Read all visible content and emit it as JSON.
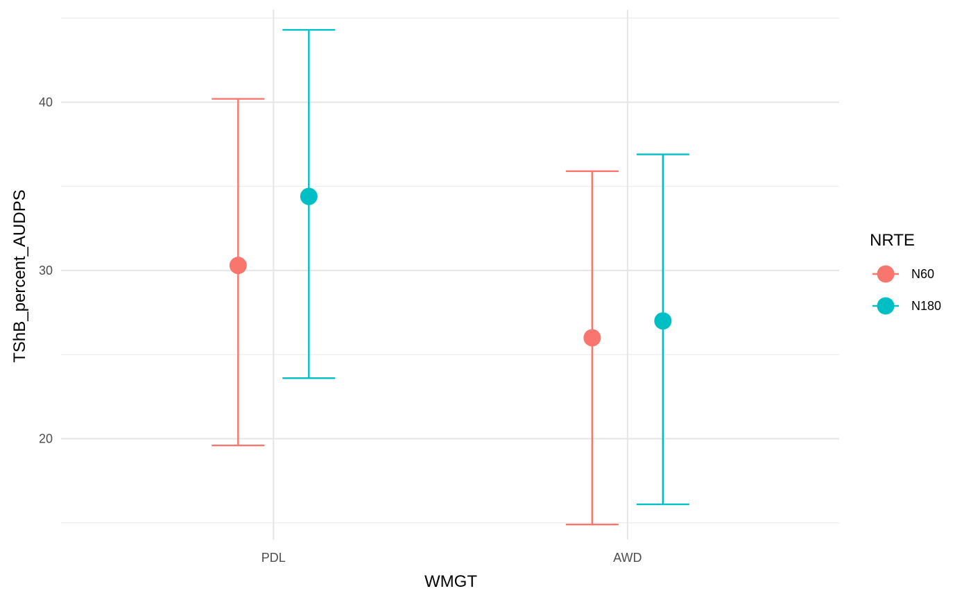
{
  "chart_data": {
    "type": "scatter",
    "subtype": "point-errorbar",
    "xlabel": "WMGT",
    "ylabel": "TShB_percent_AUDPS",
    "categories": [
      "PDL",
      "AWD"
    ],
    "ylim": [
      14,
      45.5
    ],
    "yticks": [
      20,
      30,
      40
    ],
    "grid": true,
    "legend": {
      "title": "NRTE",
      "position": "right"
    },
    "series": [
      {
        "name": "N60",
        "color": "#F8766D",
        "points": [
          {
            "x": "PDL",
            "y": 30.3,
            "lower": 19.6,
            "upper": 40.2
          },
          {
            "x": "AWD",
            "y": 26.0,
            "lower": 14.9,
            "upper": 35.9
          }
        ]
      },
      {
        "name": "N180",
        "color": "#00BFC4",
        "points": [
          {
            "x": "PDL",
            "y": 34.4,
            "lower": 23.6,
            "upper": 44.3
          },
          {
            "x": "AWD",
            "y": 27.0,
            "lower": 16.1,
            "upper": 36.9
          }
        ]
      }
    ]
  }
}
